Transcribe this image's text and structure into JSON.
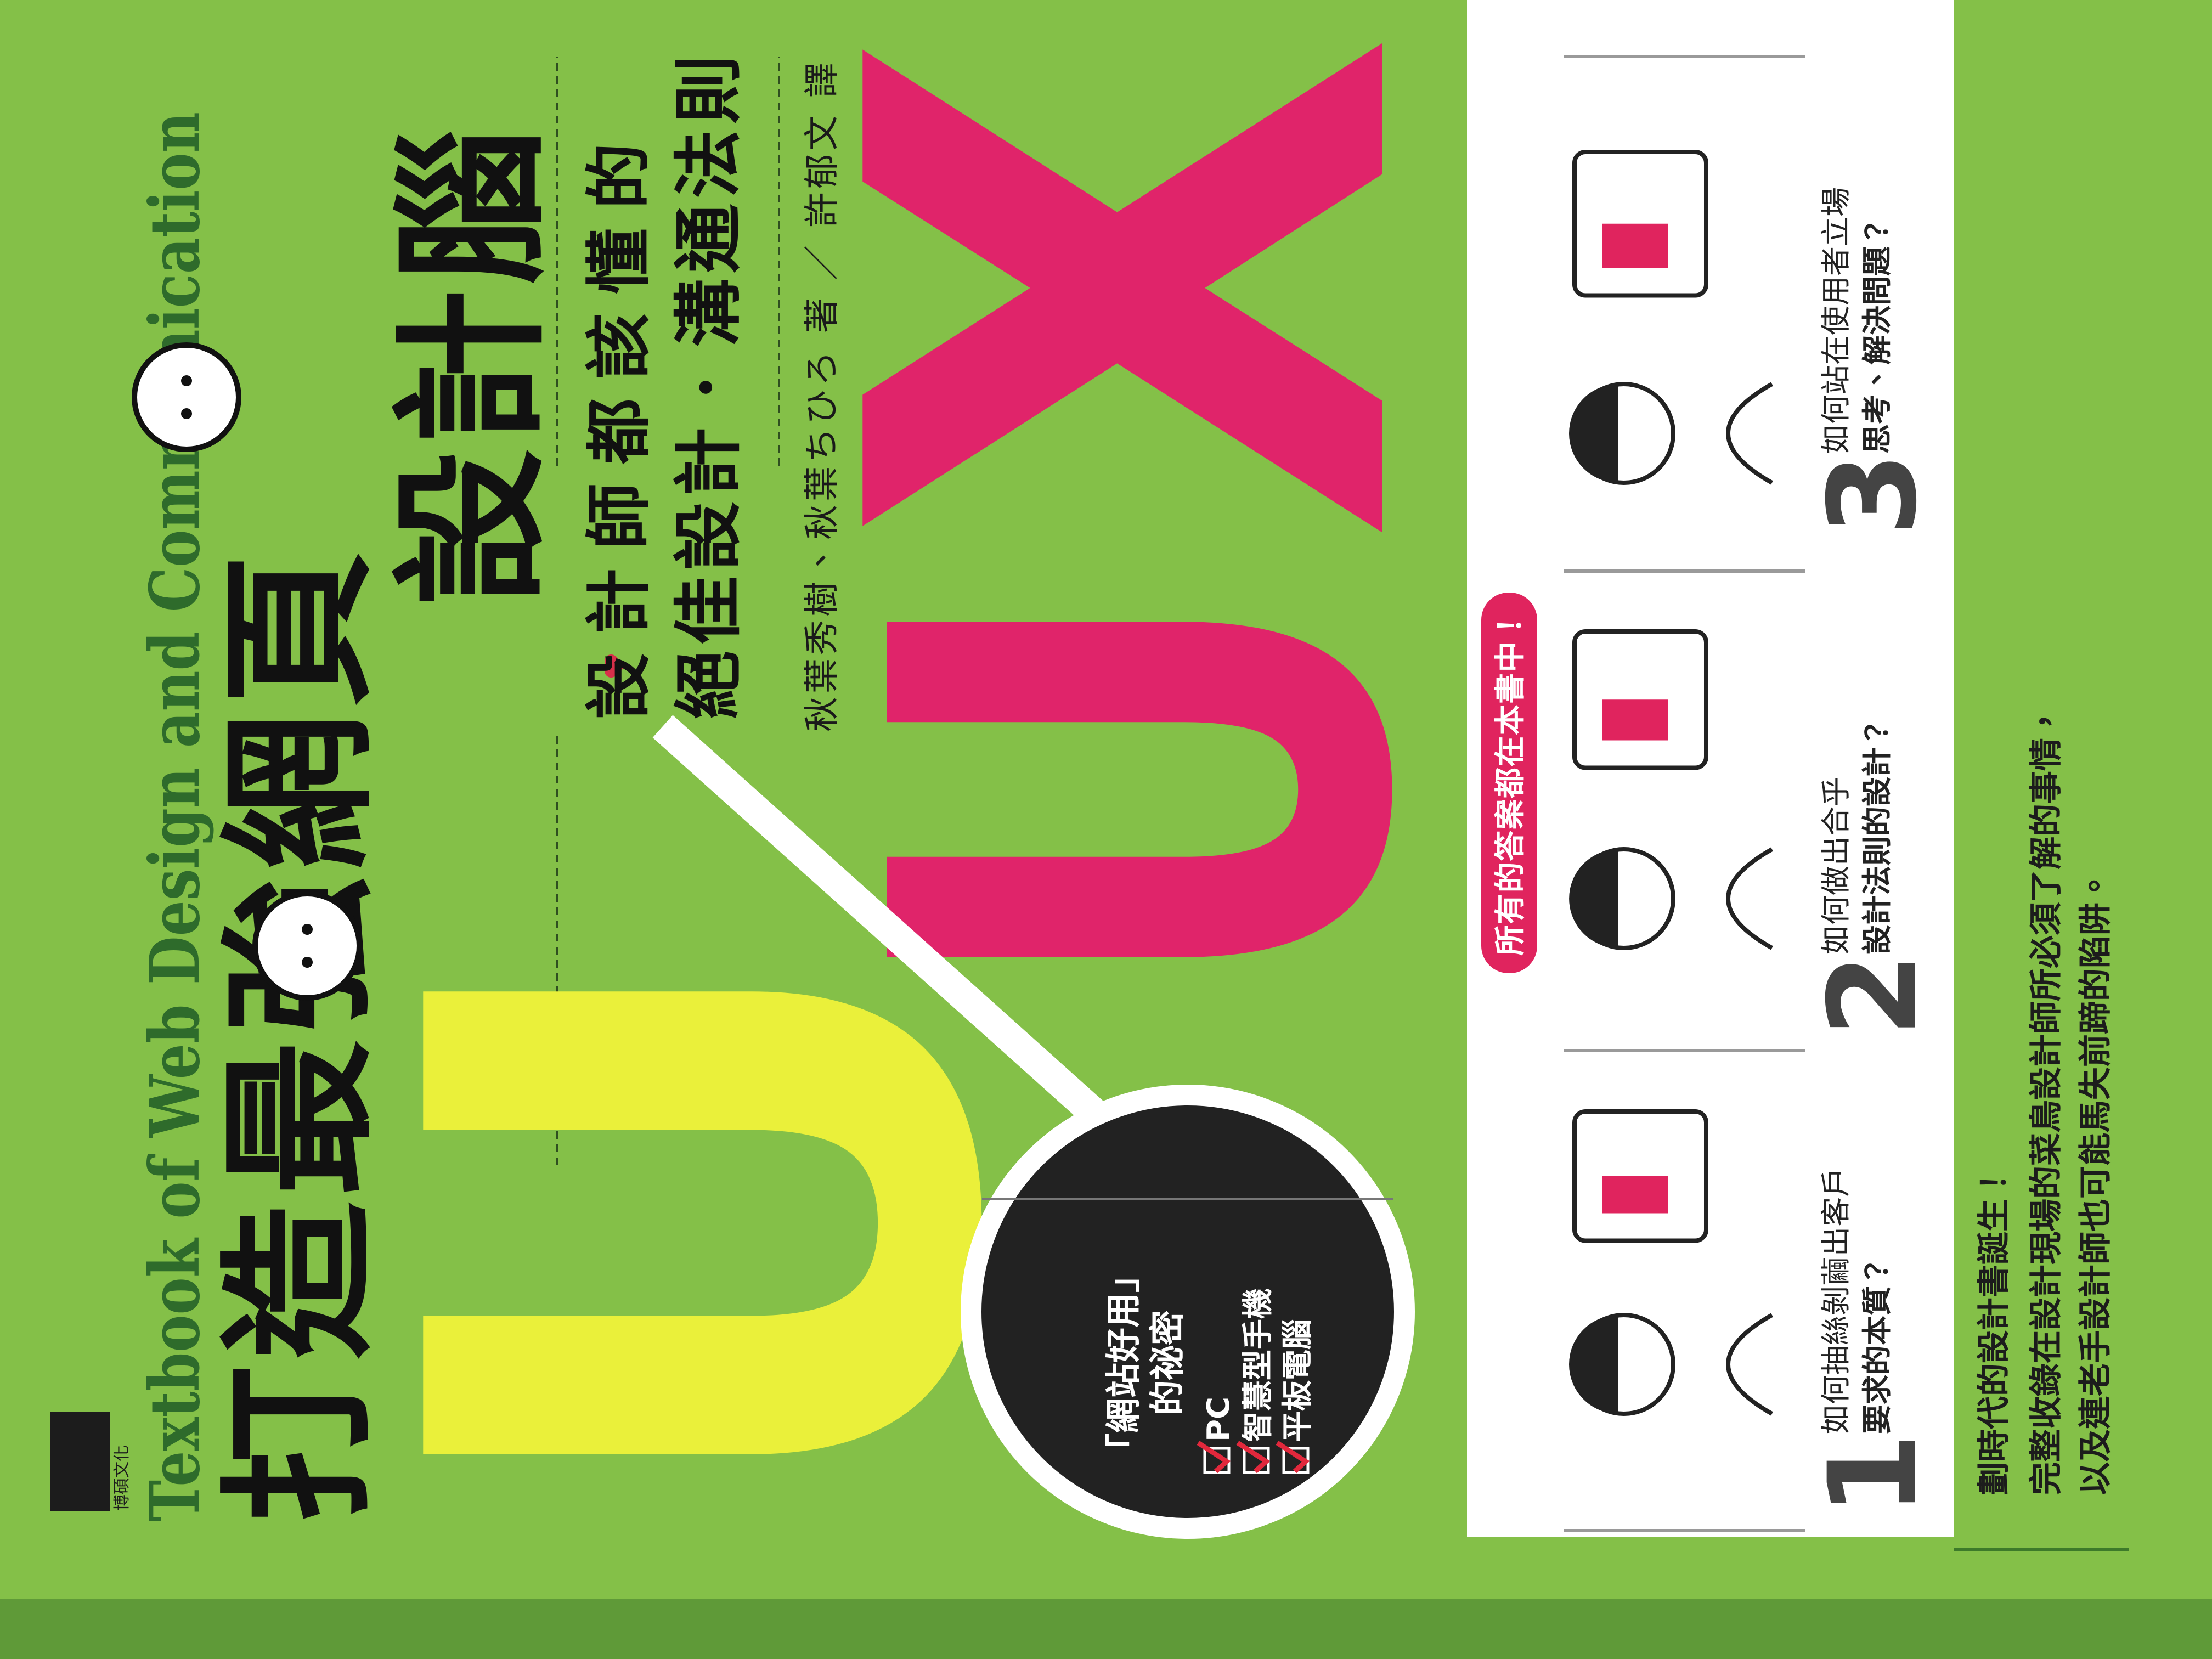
{
  "cover": {
    "english_title": "Textbook of Web Design and Communication",
    "title": [
      "打造最強網頁",
      "設計腦"
    ],
    "big_letters": [
      "U",
      "U",
      "X"
    ],
    "subtitle": [
      "設計師都該懂的",
      "絕佳設計．溝通法則"
    ],
    "authors": "秋葉秀樹、秋葉ちひろ 著 ／ 許郁文 譯",
    "publisher": "博碩文化",
    "badge": {
      "heading": "「網站好用」",
      "subheading": "的祕密",
      "checklist": [
        "PC",
        "智慧型手機",
        "平板電腦"
      ]
    },
    "answer_tag": "所有的答案都在本書中！",
    "questions": [
      {
        "number": "1",
        "lines": [
          "如何抽絲剝繭出客戶",
          "要求的本質？"
        ]
      },
      {
        "number": "2",
        "lines": [
          "如何做出合乎",
          "設計法則的設計？"
        ]
      },
      {
        "number": "3",
        "lines": [
          "如何站在使用者立場",
          "思考、解決問題？"
        ]
      }
    ],
    "blurb": [
      "劃時代的設計書誕生！",
      "完整收錄在設計現場的菜鳥設計師所必須了解的事情，",
      "以及連老手設計師也可能馬失前蹄的陷阱。"
    ]
  }
}
